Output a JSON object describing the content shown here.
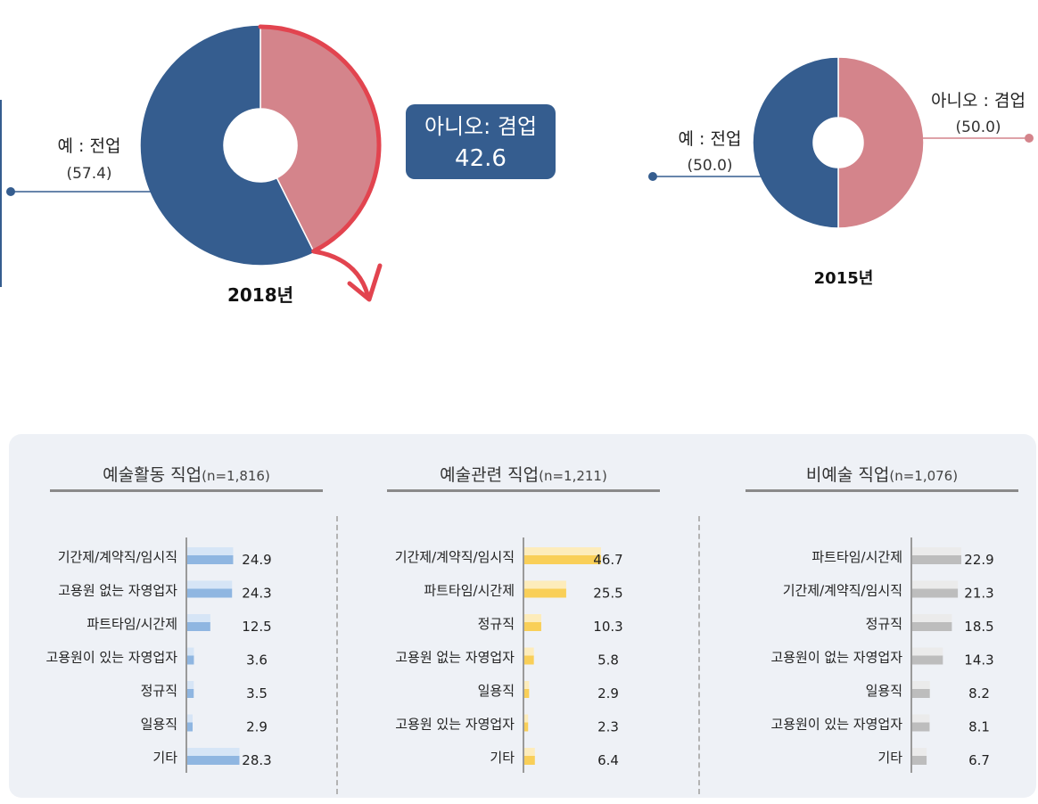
{
  "donuts": {
    "y2018": {
      "year_label": "2018년",
      "yes_label": "예 : 전업",
      "yes_value": "(57.4)",
      "no_label": "아니오: 겸업",
      "no_value": "42.6"
    },
    "y2015": {
      "year_label": "2015년",
      "yes_label": "예 : 전업",
      "yes_value": "(50.0)",
      "no_label": "아니오 : 겸업",
      "no_value": "(50.0)"
    }
  },
  "panels": {
    "arts": {
      "title": "예술활동 직업",
      "n": "(n=1,816)"
    },
    "related": {
      "title": "예술관련 직업",
      "n": "(n=1,211)"
    },
    "non_arts": {
      "title": "비예술 직업",
      "n": "(n=1,076)"
    }
  },
  "colors": {
    "yes": "#355d8f",
    "no": "#d4848b",
    "no_highlight": "#e2444f",
    "panel_bg": "#eef1f6",
    "arts_bar": "#8fb6e1",
    "arts_bar_light": "#d6e5f6",
    "related_bar": "#f9cf58",
    "related_bar_light": "#fdecbb",
    "non_arts_bar": "#bdbdbd",
    "non_arts_bar_light": "#ebebeb"
  },
  "chart_data": [
    {
      "type": "pie",
      "title": "2018년",
      "slices": [
        {
          "label": "예 : 전업",
          "value": 57.4
        },
        {
          "label": "아니오: 겸업",
          "value": 42.6
        }
      ]
    },
    {
      "type": "pie",
      "title": "2015년",
      "slices": [
        {
          "label": "예 : 전업",
          "value": 50.0
        },
        {
          "label": "아니오 : 겸업",
          "value": 50.0
        }
      ]
    },
    {
      "type": "bar",
      "title": "예술활동 직업(n=1,816)",
      "categories": [
        "기간제/계약직/임시직",
        "고용원 없는 자영업자",
        "파트타임/시간제",
        "고용원이 있는 자영업자",
        "정규직",
        "일용직",
        "기타"
      ],
      "values": [
        24.9,
        24.3,
        12.5,
        3.6,
        3.5,
        2.9,
        28.3
      ]
    },
    {
      "type": "bar",
      "title": "예술관련 직업(n=1,211)",
      "categories": [
        "기간제/계약직/임시직",
        "파트타임/시간제",
        "정규직",
        "고용원 없는 자영업자",
        "일용직",
        "고용원 있는 자영업자",
        "기타"
      ],
      "values": [
        46.7,
        25.5,
        10.3,
        5.8,
        2.9,
        2.3,
        6.4
      ]
    },
    {
      "type": "bar",
      "title": "비예술 직업(n=1,076)",
      "categories": [
        "파트타임/시간제",
        "기간제/계약직/임시직",
        "정규직",
        "고용원이 없는 자영업자",
        "일용직",
        "고용원이 있는 자영업자",
        "기타"
      ],
      "values": [
        22.9,
        21.3,
        18.5,
        14.3,
        8.2,
        8.1,
        6.7
      ]
    }
  ]
}
